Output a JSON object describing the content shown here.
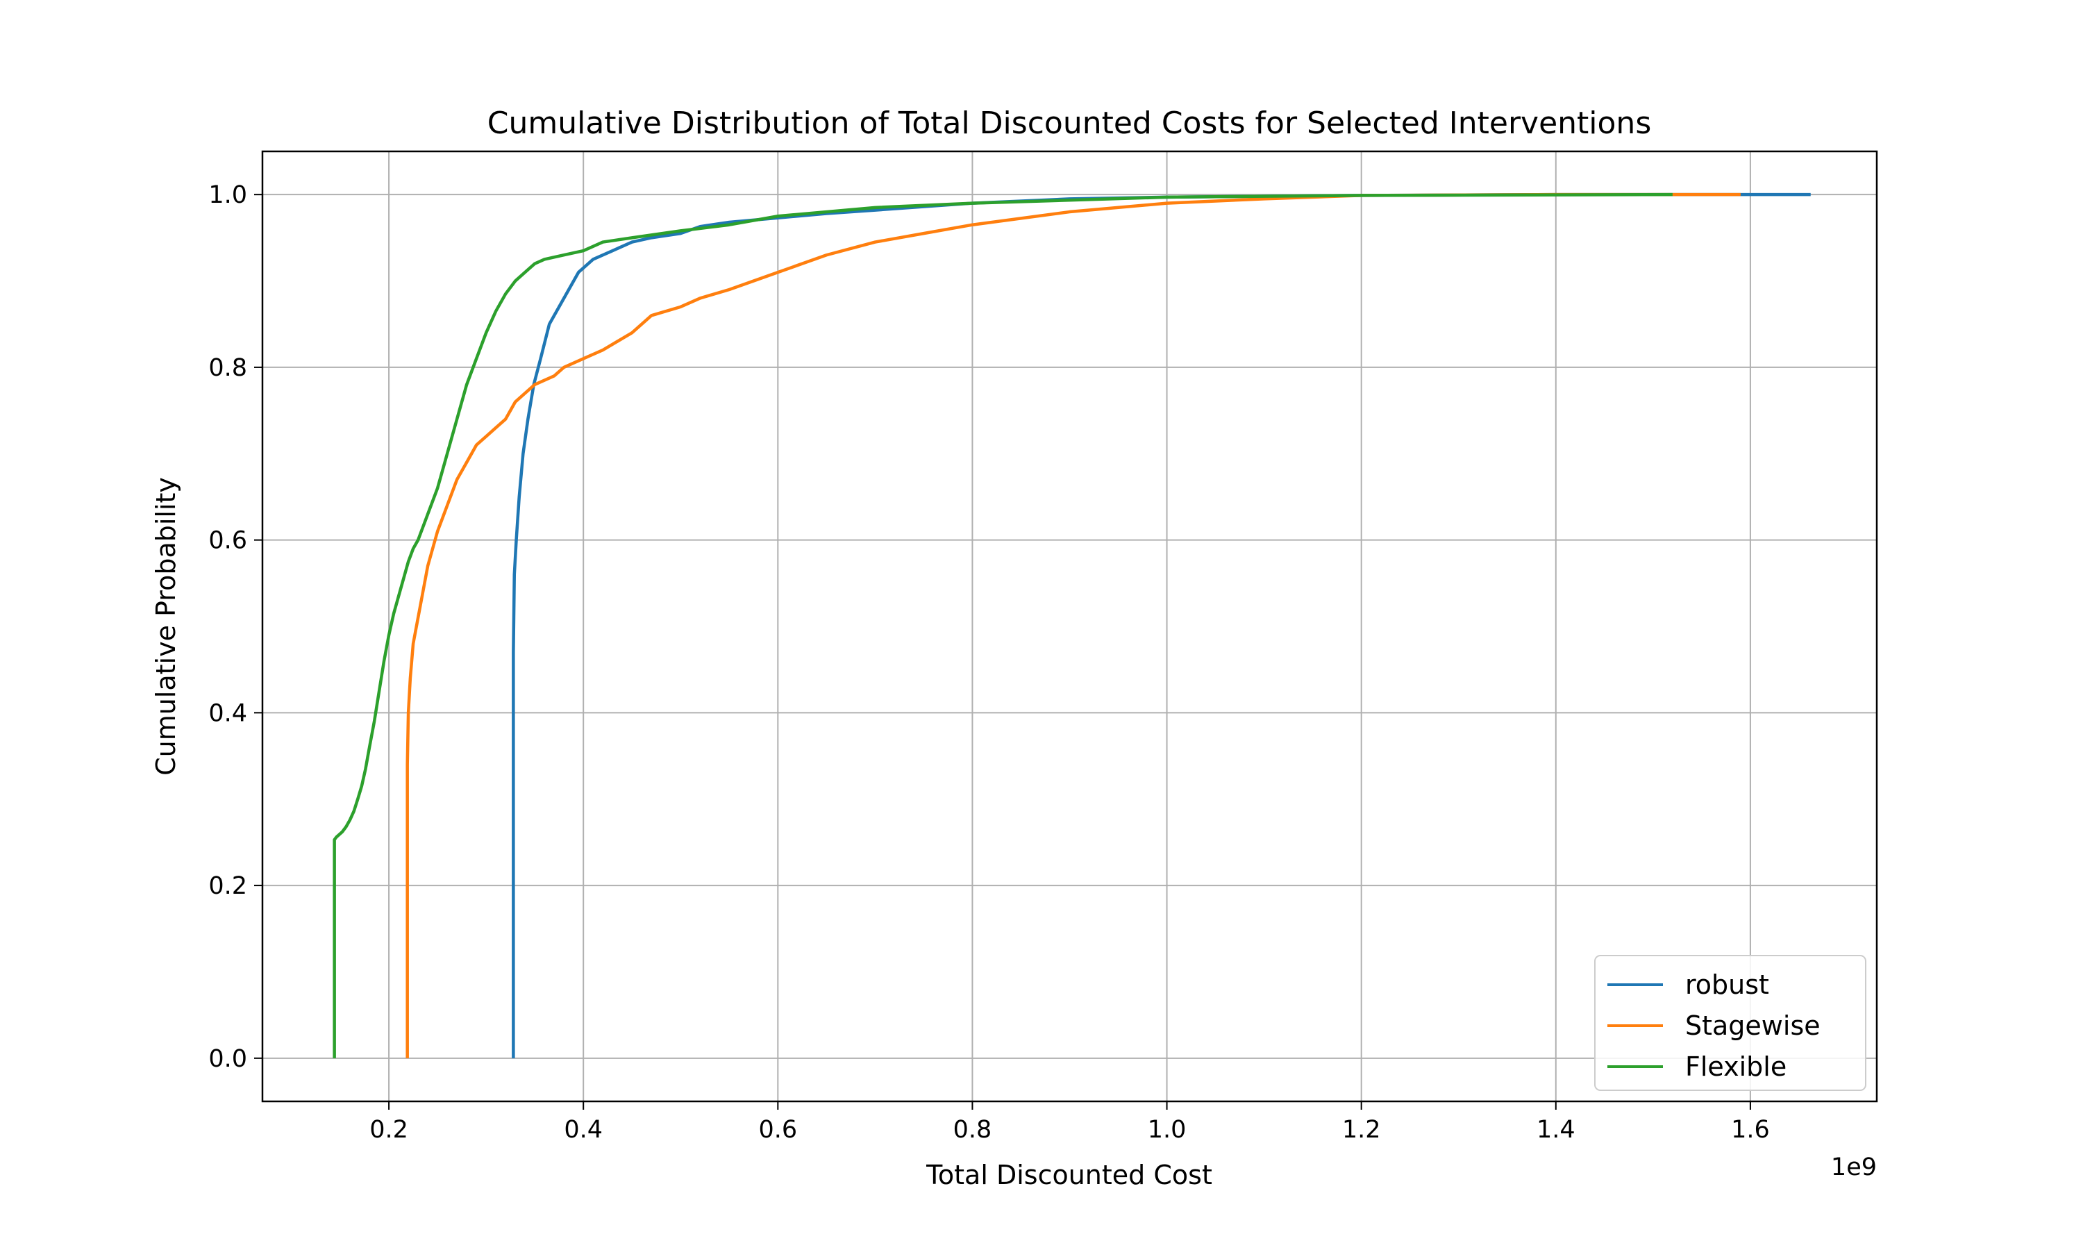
{
  "chart_data": {
    "type": "line",
    "subtype": "step-cdf",
    "title": "Cumulative Distribution of Total Discounted Costs for Selected Interventions",
    "xlabel": "Total Discounted Cost",
    "ylabel": "Cumulative Probability",
    "x_offset_label": "1e9",
    "xlim": [
      0.07,
      1.73
    ],
    "ylim": [
      -0.05,
      1.05
    ],
    "x_ticks": [
      0.2,
      0.4,
      0.6,
      0.8,
      1.0,
      1.2,
      1.4,
      1.6
    ],
    "x_tick_labels": [
      "0.2",
      "0.4",
      "0.6",
      "0.8",
      "1.0",
      "1.2",
      "1.4",
      "1.6"
    ],
    "y_ticks": [
      0.0,
      0.2,
      0.4,
      0.6,
      0.8,
      1.0
    ],
    "y_tick_labels": [
      "0.0",
      "0.2",
      "0.4",
      "0.6",
      "0.8",
      "1.0"
    ],
    "grid": true,
    "legend_position": "lower-right",
    "series": [
      {
        "name": "robust",
        "color": "#1f77b4",
        "x": [
          0.328,
          0.328,
          0.329,
          0.331,
          0.334,
          0.338,
          0.343,
          0.349,
          0.356,
          0.365,
          0.375,
          0.385,
          0.395,
          0.41,
          0.43,
          0.45,
          0.47,
          0.5,
          0.52,
          0.55,
          0.6,
          0.65,
          0.7,
          0.8,
          0.9,
          1.0,
          1.2,
          1.4,
          1.662
        ],
        "y": [
          0.0,
          0.47,
          0.56,
          0.6,
          0.65,
          0.7,
          0.74,
          0.78,
          0.81,
          0.85,
          0.87,
          0.89,
          0.91,
          0.925,
          0.935,
          0.945,
          0.95,
          0.955,
          0.963,
          0.968,
          0.973,
          0.978,
          0.982,
          0.99,
          0.995,
          0.997,
          0.999,
          1.0,
          1.0
        ]
      },
      {
        "name": "Stagewise",
        "color": "#ff7f0e",
        "x": [
          0.219,
          0.219,
          0.22,
          0.222,
          0.225,
          0.23,
          0.235,
          0.24,
          0.25,
          0.26,
          0.27,
          0.28,
          0.29,
          0.3,
          0.31,
          0.32,
          0.33,
          0.35,
          0.37,
          0.38,
          0.4,
          0.42,
          0.45,
          0.47,
          0.5,
          0.52,
          0.55,
          0.6,
          0.65,
          0.7,
          0.75,
          0.8,
          0.9,
          1.0,
          1.1,
          1.2,
          1.4,
          1.59
        ],
        "y": [
          0.0,
          0.34,
          0.4,
          0.44,
          0.48,
          0.51,
          0.54,
          0.57,
          0.61,
          0.64,
          0.67,
          0.69,
          0.71,
          0.72,
          0.73,
          0.74,
          0.76,
          0.78,
          0.79,
          0.8,
          0.81,
          0.82,
          0.84,
          0.86,
          0.87,
          0.88,
          0.89,
          0.91,
          0.93,
          0.945,
          0.955,
          0.965,
          0.98,
          0.99,
          0.995,
          0.999,
          1.0,
          1.0
        ]
      },
      {
        "name": "Flexible",
        "color": "#2ca02c",
        "x": [
          0.144,
          0.144,
          0.146,
          0.148,
          0.152,
          0.156,
          0.16,
          0.164,
          0.168,
          0.172,
          0.176,
          0.18,
          0.185,
          0.19,
          0.195,
          0.2,
          0.205,
          0.21,
          0.215,
          0.22,
          0.225,
          0.23,
          0.235,
          0.24,
          0.25,
          0.26,
          0.27,
          0.28,
          0.29,
          0.3,
          0.31,
          0.32,
          0.33,
          0.34,
          0.35,
          0.36,
          0.38,
          0.4,
          0.42,
          0.45,
          0.5,
          0.55,
          0.6,
          0.7,
          0.8,
          1.0,
          1.2,
          1.52
        ],
        "y": [
          0.0,
          0.253,
          0.256,
          0.258,
          0.262,
          0.268,
          0.276,
          0.286,
          0.3,
          0.315,
          0.335,
          0.36,
          0.39,
          0.425,
          0.46,
          0.49,
          0.515,
          0.535,
          0.555,
          0.575,
          0.59,
          0.6,
          0.615,
          0.63,
          0.66,
          0.7,
          0.74,
          0.78,
          0.81,
          0.84,
          0.865,
          0.885,
          0.9,
          0.91,
          0.92,
          0.925,
          0.93,
          0.935,
          0.945,
          0.95,
          0.958,
          0.965,
          0.975,
          0.985,
          0.99,
          0.997,
          0.999,
          1.0
        ]
      }
    ]
  }
}
